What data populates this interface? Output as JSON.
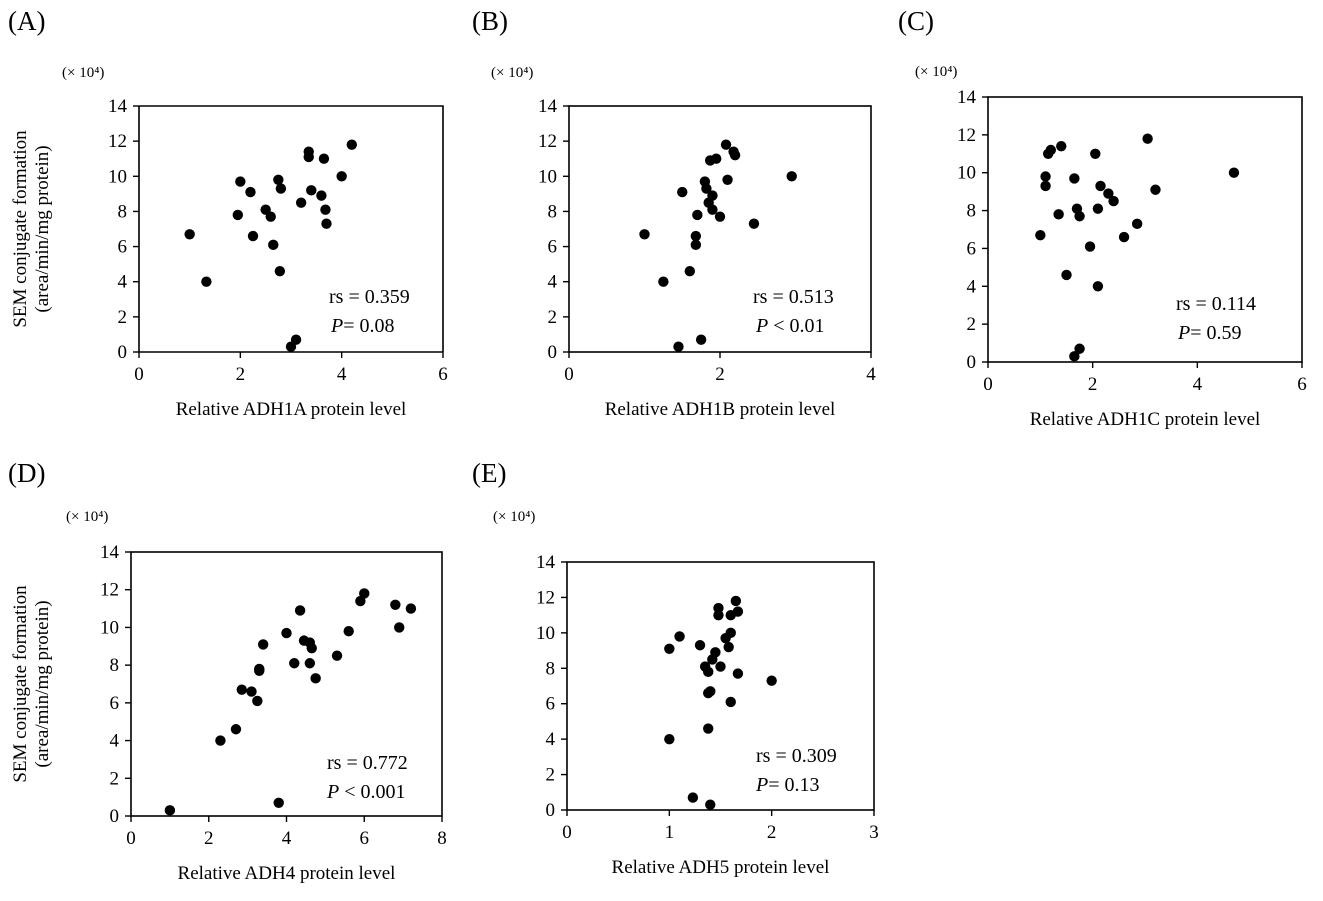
{
  "ylabel_line1": "SEM conjugate formation",
  "ylabel_line2": "(area/min/mg  protein)",
  "y_multiplier": "(× 10⁴)",
  "chart_data": [
    {
      "type": "scatter",
      "panel": "(A)",
      "xlabel": "Relative ADH1A protein level",
      "xlim": [
        0,
        6
      ],
      "xticks": [
        0,
        2,
        4,
        6
      ],
      "ylim": [
        0,
        14
      ],
      "yticks": [
        0,
        2,
        4,
        6,
        8,
        10,
        12,
        14
      ],
      "rs_text": "rs = 0.359",
      "p_label": "P",
      "p_value": "= 0.08",
      "points": [
        [
          1.0,
          6.7
        ],
        [
          1.33,
          4.0
        ],
        [
          1.95,
          7.8
        ],
        [
          2.0,
          9.7
        ],
        [
          2.2,
          9.1
        ],
        [
          2.25,
          6.6
        ],
        [
          2.5,
          8.1
        ],
        [
          2.6,
          7.7
        ],
        [
          2.65,
          6.1
        ],
        [
          2.75,
          9.8
        ],
        [
          2.8,
          9.3
        ],
        [
          2.78,
          4.6
        ],
        [
          3.0,
          0.3
        ],
        [
          3.1,
          0.7
        ],
        [
          3.2,
          8.5
        ],
        [
          3.35,
          11.1
        ],
        [
          3.35,
          11.4
        ],
        [
          3.4,
          9.2
        ],
        [
          3.6,
          8.9
        ],
        [
          3.65,
          11.0
        ],
        [
          3.68,
          8.1
        ],
        [
          3.7,
          7.3
        ],
        [
          4.0,
          10.0
        ],
        [
          4.2,
          11.8
        ]
      ]
    },
    {
      "type": "scatter",
      "panel": "(B)",
      "xlabel": "Relative ADH1B protein level",
      "xlim": [
        0,
        4
      ],
      "xticks": [
        0,
        2,
        4
      ],
      "ylim": [
        0,
        14
      ],
      "yticks": [
        0,
        2,
        4,
        6,
        8,
        10,
        12,
        14
      ],
      "rs_text": "rs = 0.513",
      "p_label": "P",
      "p_value": " < 0.01",
      "points": [
        [
          1.0,
          6.7
        ],
        [
          1.25,
          4.0
        ],
        [
          1.45,
          0.3
        ],
        [
          1.5,
          9.1
        ],
        [
          1.6,
          4.6
        ],
        [
          1.68,
          6.1
        ],
        [
          1.68,
          6.6
        ],
        [
          1.7,
          7.8
        ],
        [
          1.75,
          0.7
        ],
        [
          1.8,
          9.7
        ],
        [
          1.82,
          9.3
        ],
        [
          1.85,
          8.5
        ],
        [
          1.87,
          10.9
        ],
        [
          1.9,
          8.1
        ],
        [
          1.9,
          8.9
        ],
        [
          1.95,
          11.0
        ],
        [
          2.0,
          7.7
        ],
        [
          2.08,
          11.8
        ],
        [
          2.1,
          9.8
        ],
        [
          2.18,
          11.4
        ],
        [
          2.2,
          11.2
        ],
        [
          2.45,
          7.3
        ],
        [
          2.95,
          10.0
        ]
      ]
    },
    {
      "type": "scatter",
      "panel": "(C)",
      "xlabel": "Relative ADH1C protein level",
      "xlim": [
        0,
        6
      ],
      "xticks": [
        0,
        2,
        4,
        6
      ],
      "ylim": [
        0,
        14
      ],
      "yticks": [
        0,
        2,
        4,
        6,
        8,
        10,
        12,
        14
      ],
      "rs_text": "rs = 0.114",
      "p_label": "P",
      "p_value": "= 0.59",
      "points": [
        [
          1.0,
          6.7
        ],
        [
          1.1,
          9.3
        ],
        [
          1.1,
          9.8
        ],
        [
          1.15,
          11.0
        ],
        [
          1.2,
          11.2
        ],
        [
          1.35,
          7.8
        ],
        [
          1.4,
          11.4
        ],
        [
          1.5,
          4.6
        ],
        [
          1.65,
          9.7
        ],
        [
          1.65,
          0.3
        ],
        [
          1.7,
          8.1
        ],
        [
          1.75,
          7.7
        ],
        [
          1.75,
          0.7
        ],
        [
          1.95,
          6.1
        ],
        [
          2.05,
          11.0
        ],
        [
          2.1,
          8.1
        ],
        [
          2.1,
          4.0
        ],
        [
          2.15,
          9.3
        ],
        [
          2.3,
          8.9
        ],
        [
          2.4,
          8.5
        ],
        [
          2.6,
          6.6
        ],
        [
          2.85,
          7.3
        ],
        [
          3.05,
          11.8
        ],
        [
          3.2,
          9.1
        ],
        [
          4.7,
          10.0
        ]
      ]
    },
    {
      "type": "scatter",
      "panel": "(D)",
      "xlabel": "Relative ADH4 protein level",
      "xlim": [
        0,
        8
      ],
      "xticks": [
        0,
        2,
        4,
        6,
        8
      ],
      "ylim": [
        0,
        14
      ],
      "yticks": [
        0,
        2,
        4,
        6,
        8,
        10,
        12,
        14
      ],
      "rs_text": "rs = 0.772",
      "p_label": "P",
      "p_value": " < 0.001",
      "points": [
        [
          1.0,
          0.3
        ],
        [
          2.3,
          4.0
        ],
        [
          2.7,
          4.6
        ],
        [
          2.85,
          6.7
        ],
        [
          3.1,
          6.6
        ],
        [
          3.25,
          6.1
        ],
        [
          3.3,
          7.7
        ],
        [
          3.3,
          7.8
        ],
        [
          3.4,
          9.1
        ],
        [
          4.0,
          9.7
        ],
        [
          4.2,
          8.1
        ],
        [
          4.35,
          10.9
        ],
        [
          4.45,
          9.3
        ],
        [
          4.6,
          8.1
        ],
        [
          4.6,
          9.2
        ],
        [
          4.65,
          8.9
        ],
        [
          4.75,
          7.3
        ],
        [
          3.8,
          0.7
        ],
        [
          5.3,
          8.5
        ],
        [
          5.6,
          9.8
        ],
        [
          5.9,
          11.4
        ],
        [
          6.0,
          11.8
        ],
        [
          6.8,
          11.2
        ],
        [
          6.9,
          10.0
        ],
        [
          7.2,
          11.0
        ]
      ]
    },
    {
      "type": "scatter",
      "panel": "(E)",
      "xlabel": "Relative ADH5 protein level",
      "xlim": [
        0,
        3
      ],
      "xticks": [
        0,
        1,
        2,
        3
      ],
      "ylim": [
        0,
        14
      ],
      "yticks": [
        0,
        2,
        4,
        6,
        8,
        10,
        12,
        14
      ],
      "rs_text": "rs = 0.309",
      "p_label": "P",
      "p_value": "= 0.13",
      "points": [
        [
          1.0,
          9.1
        ],
        [
          1.0,
          4.0
        ],
        [
          1.1,
          9.8
        ],
        [
          1.23,
          0.7
        ],
        [
          1.3,
          9.3
        ],
        [
          1.35,
          8.1
        ],
        [
          1.38,
          7.8
        ],
        [
          1.38,
          6.6
        ],
        [
          1.4,
          6.7
        ],
        [
          1.38,
          4.6
        ],
        [
          1.4,
          0.3
        ],
        [
          1.42,
          8.5
        ],
        [
          1.45,
          8.9
        ],
        [
          1.48,
          11.4
        ],
        [
          1.48,
          11.0
        ],
        [
          1.5,
          8.1
        ],
        [
          1.55,
          9.7
        ],
        [
          1.58,
          9.2
        ],
        [
          1.6,
          10.0
        ],
        [
          1.6,
          11.0
        ],
        [
          1.6,
          6.1
        ],
        [
          1.65,
          11.8
        ],
        [
          1.67,
          11.2
        ],
        [
          1.67,
          7.7
        ],
        [
          2.0,
          7.3
        ]
      ]
    }
  ]
}
